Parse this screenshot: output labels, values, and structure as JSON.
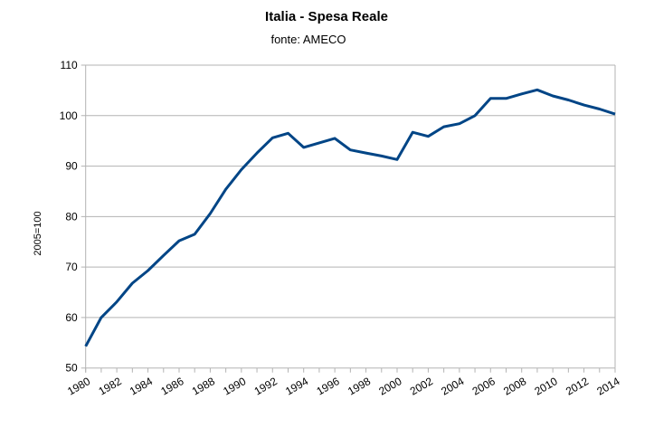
{
  "chart_data": {
    "type": "line",
    "title": "Italia - Spesa Reale",
    "subtitle": "fonte: AMECO",
    "xlabel": "",
    "ylabel": "2005=100",
    "ylim": [
      50,
      110
    ],
    "yticks": [
      "50",
      "60",
      "70",
      "80",
      "90",
      "100",
      "110"
    ],
    "xticks": [
      "1980",
      "1982",
      "1984",
      "1986",
      "1988",
      "1990",
      "1992",
      "1994",
      "1996",
      "1998",
      "2000",
      "2002",
      "2004",
      "2006",
      "2008",
      "2010",
      "2012",
      "2014"
    ],
    "grid": true,
    "legend": "none",
    "x": [
      1980,
      1981,
      1982,
      1983,
      1984,
      1985,
      1986,
      1987,
      1988,
      1989,
      1990,
      1991,
      1992,
      1993,
      1994,
      1995,
      1996,
      1997,
      1998,
      1999,
      2000,
      2001,
      2002,
      2003,
      2004,
      2005,
      2006,
      2007,
      2008,
      2009,
      2010,
      2011,
      2012,
      2013,
      2014
    ],
    "series": [
      {
        "color": "#004586",
        "values": [
          54.3,
          60.0,
          63.1,
          66.8,
          69.3,
          72.3,
          75.2,
          76.5,
          80.6,
          85.4,
          89.3,
          92.6,
          95.6,
          96.5,
          93.7,
          94.6,
          95.5,
          93.2,
          92.6,
          92.0,
          91.3,
          96.7,
          95.9,
          97.8,
          98.4,
          100.0,
          103.4,
          103.4,
          104.3,
          105.1,
          103.9,
          103.1,
          102.1,
          101.3,
          100.3
        ]
      }
    ]
  }
}
